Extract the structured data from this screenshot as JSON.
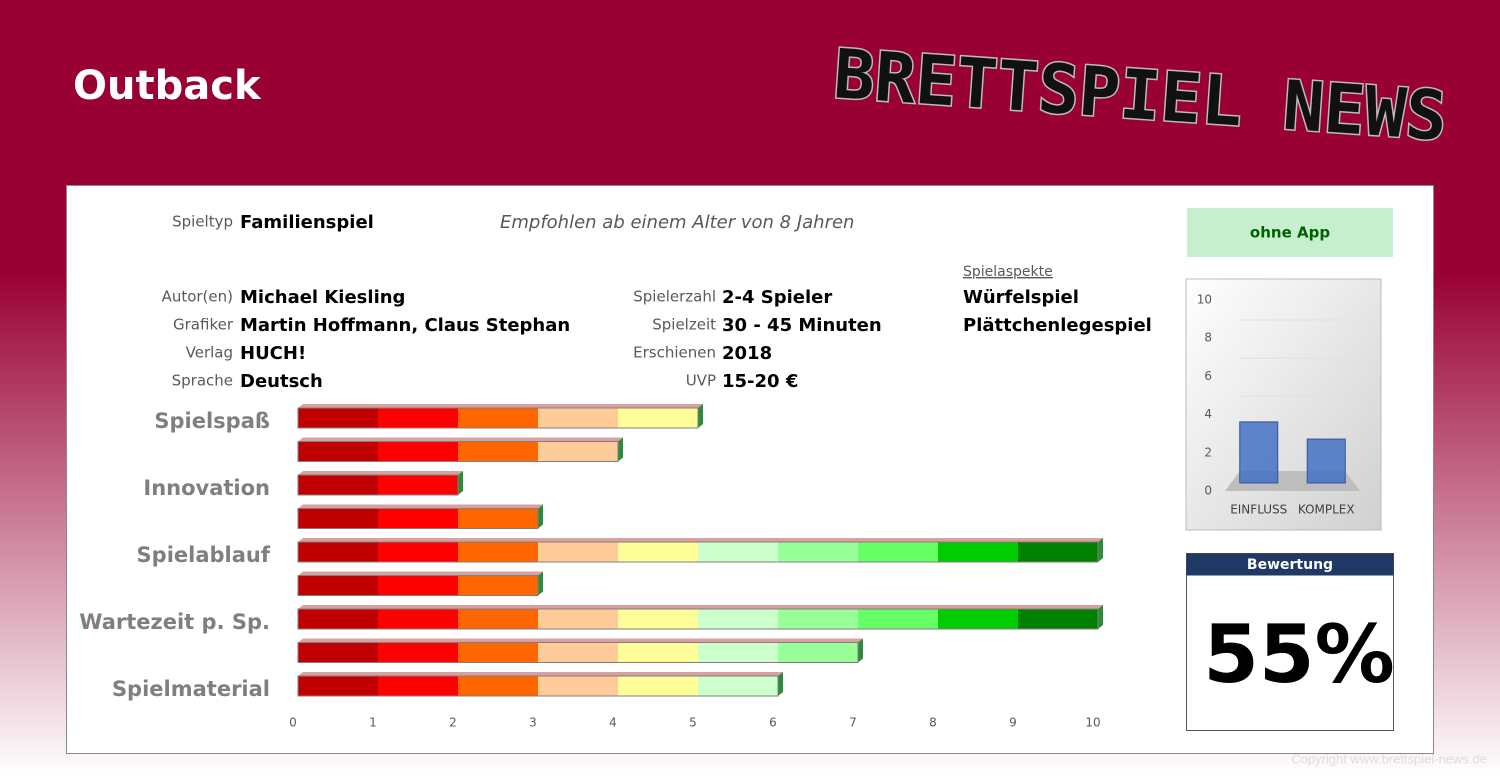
{
  "header": {
    "title": "Outback",
    "logo": "BRETTSPIEL NEWS"
  },
  "info": {
    "spieltyp": {
      "label": "Spieltyp",
      "value": "Familienspiel"
    },
    "age": "Empfohlen ab einem Alter von 8 Jahren",
    "left": [
      {
        "label": "Autor(en)",
        "value": "Michael Kiesling"
      },
      {
        "label": "Grafiker",
        "value": "Martin Hoffmann, Claus Stephan"
      },
      {
        "label": "Verlag",
        "value": "HUCH!"
      },
      {
        "label": "Sprache",
        "value": "Deutsch"
      }
    ],
    "mid": [
      {
        "label": "Spielerzahl",
        "value": "2-4 Spieler"
      },
      {
        "label": "Spielzeit",
        "value": "30 - 45 Minuten"
      },
      {
        "label": "Erschienen",
        "value": "2018"
      },
      {
        "label": "UVP",
        "value": "15-20 €"
      }
    ],
    "aspects": {
      "title": "Spielaspekte",
      "items": [
        "Würfelspiel",
        "Plättchenlegespiel"
      ]
    }
  },
  "app": "ohne App",
  "rating": {
    "title": "Bewertung",
    "value": "55%"
  },
  "copyright": "Copyright www.brettspiel-news.de",
  "chart_data": [
    {
      "type": "segmented-bar",
      "categories": [
        "Spielspaß",
        null,
        "Innovation",
        null,
        "Spielablauf",
        null,
        "Wartezeit p. Sp.",
        null,
        "Spielmaterial"
      ],
      "values": [
        5,
        4,
        2,
        3,
        10,
        3,
        10,
        7,
        6
      ],
      "colors": [
        "#c00000",
        "#ff0000",
        "#ff6600",
        "#ffcc99",
        "#ffff99",
        "#ccffcc",
        "#99ff99",
        "#66ff66",
        "#00cc00",
        "#008000"
      ],
      "xlim": [
        0,
        10
      ],
      "xticks": [
        0,
        1,
        2,
        3,
        4,
        5,
        6,
        7,
        8,
        9,
        10
      ]
    },
    {
      "type": "bar",
      "categories": [
        "EINFLUSS",
        "KOMPLEX"
      ],
      "values": [
        3.2,
        2.3
      ],
      "color": "#4472c4",
      "ylim": [
        0,
        10
      ],
      "yticks": [
        0,
        2,
        4,
        6,
        8,
        10
      ],
      "grid": true
    }
  ]
}
